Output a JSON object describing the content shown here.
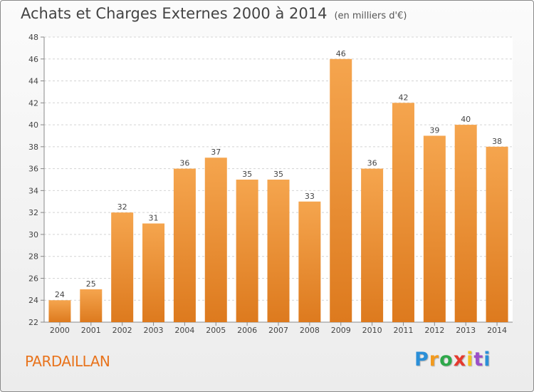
{
  "title": "Achats et Charges Externes 2000 à 2014",
  "subtitle": "(en milliers d'€)",
  "place": "PARDAILLAN",
  "logo": {
    "letters": [
      "P",
      "r",
      "o",
      "x",
      "i",
      "t",
      "i"
    ],
    "colors": [
      "#2a8fd8",
      "#f29a1e",
      "#2ea84a",
      "#e53a2e",
      "#f2c21e",
      "#9b4fc8",
      "#2a8fd8"
    ],
    "icon": "proxiti-logo"
  },
  "colors": {
    "bar_top": "#f5a54e",
    "bar_bottom": "#dd7a1e",
    "place_text": "#e8731c"
  },
  "chart_data": {
    "type": "bar",
    "categories": [
      "2000",
      "2001",
      "2002",
      "2003",
      "2004",
      "2005",
      "2006",
      "2007",
      "2008",
      "2009",
      "2010",
      "2011",
      "2012",
      "2013",
      "2014"
    ],
    "values": [
      24,
      25,
      32,
      31,
      36,
      37,
      35,
      35,
      33,
      46,
      36,
      42,
      39,
      40,
      38
    ],
    "ylim": [
      22,
      48
    ],
    "yticks": [
      22,
      24,
      26,
      28,
      30,
      32,
      34,
      36,
      38,
      40,
      42,
      44,
      46,
      48
    ],
    "grid": true,
    "data_labels": true
  }
}
